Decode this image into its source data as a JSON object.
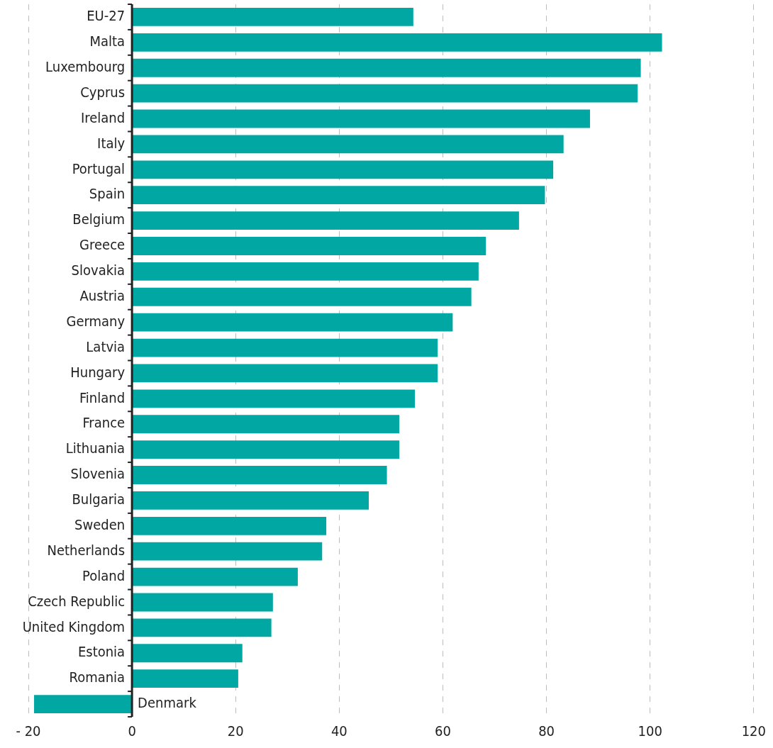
{
  "chart_data": {
    "type": "bar",
    "orientation": "horizontal",
    "categories": [
      "EU-27",
      "Malta",
      "Luxembourg",
      "Cyprus",
      "Ireland",
      "Italy",
      "Portugal",
      "Spain",
      "Belgium",
      "Greece",
      "Slovakia",
      "Austria",
      "Germany",
      "Latvia",
      "Hungary",
      "Finland",
      "France",
      "Lithuania",
      "Slovenia",
      "Bulgaria",
      "Sweden",
      "Netherlands",
      "Poland",
      "Czech Republic",
      "United Kingdom",
      "Estonia",
      "Romania",
      "Denmark"
    ],
    "values": [
      54.3,
      102.3,
      98.2,
      97.6,
      88.4,
      83.3,
      81.3,
      79.7,
      74.7,
      68.3,
      66.9,
      65.5,
      61.9,
      59.0,
      59.0,
      54.6,
      51.6,
      51.6,
      49.2,
      45.7,
      37.5,
      36.7,
      32.0,
      27.2,
      26.9,
      21.3,
      20.5,
      -18.9
    ],
    "color": "#00a7a3",
    "xlim": [
      -20,
      120
    ],
    "xticks": [
      {
        "value": -20,
        "label": "- 20"
      },
      0,
      20,
      40,
      60,
      80,
      100,
      120
    ],
    "grid": "x"
  }
}
